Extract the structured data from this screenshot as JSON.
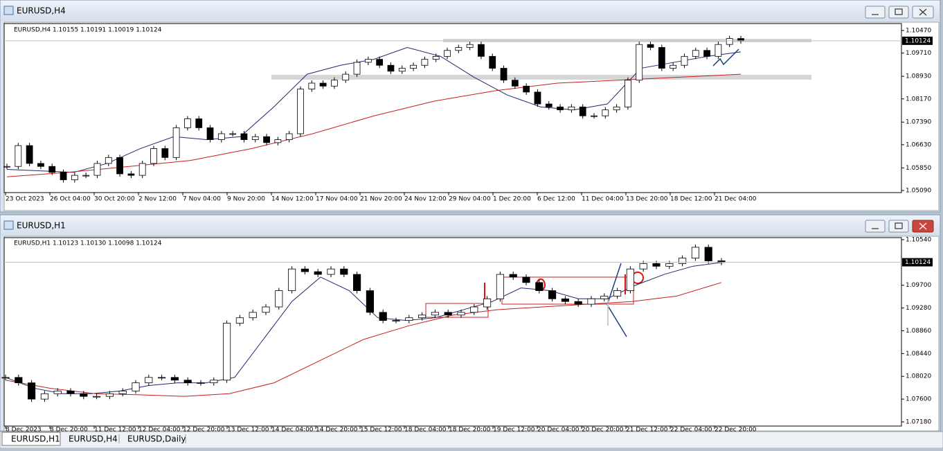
{
  "windows": [
    {
      "title": "EURUSD,H4",
      "header": "EURUSD,H4  1.10155 1.10191 1.10019 1.10124",
      "chart_data": {
        "type": "candlestick",
        "ylim": [
          1.0502,
          1.10703
        ],
        "yticks": [
          {
            "value": 1.1047,
            "label": "1.10470"
          },
          {
            "value": 1.0971,
            "label": "1.09710"
          },
          {
            "value": 1.0893,
            "label": "1.08930"
          },
          {
            "value": 1.0817,
            "label": "1.08170"
          },
          {
            "value": 1.0739,
            "label": "1.07390"
          },
          {
            "value": 1.0663,
            "label": "1.06630"
          },
          {
            "value": 1.0585,
            "label": "1.05850"
          },
          {
            "value": 1.0509,
            "label": "1.05090"
          }
        ],
        "current_price": {
          "value": 1.10124,
          "label": "1.10124"
        },
        "xticks": [
          "23 Oct 2023",
          "26 Oct 04:00",
          "30 Oct 20:00",
          "2 Nov 12:00",
          "7 Nov 04:00",
          "9 Nov 20:00",
          "14 Nov 12:00",
          "17 Nov 04:00",
          "21 Nov 20:00",
          "24 Nov 12:00",
          "29 Nov 04:00",
          "1 Dec 20:00",
          "6 Dec 12:00",
          "11 Dec 04:00",
          "13 Dec 20:00",
          "18 Dec 12:00",
          "21 Dec 04:00"
        ],
        "closes": [
          1.059,
          1.066,
          1.06,
          1.059,
          1.057,
          1.0545,
          1.056,
          1.056,
          1.06,
          1.062,
          1.0565,
          1.056,
          1.06,
          1.065,
          1.062,
          1.072,
          1.075,
          1.072,
          1.068,
          1.07,
          1.07,
          1.068,
          1.069,
          1.067,
          1.068,
          1.07,
          1.085,
          1.087,
          1.086,
          1.088,
          1.09,
          1.094,
          1.095,
          1.093,
          1.091,
          1.092,
          1.093,
          1.095,
          1.096,
          1.098,
          1.099,
          1.1,
          1.096,
          1.092,
          1.088,
          1.086,
          1.084,
          1.08,
          1.079,
          1.078,
          1.079,
          1.076,
          1.076,
          1.078,
          1.079,
          1.088,
          1.1,
          1.099,
          1.092,
          1.093,
          1.096,
          1.098,
          1.096,
          1.1,
          1.102,
          1.1012
        ],
        "series": [
          {
            "color": "#1c2a6b",
            "values": [
              1.058,
              1.0575,
              1.057,
              1.06,
              1.065,
              1.069,
              1.068,
              1.069,
              1.079,
              1.09,
              1.093,
              1.095,
              1.099,
              1.096,
              1.089,
              1.083,
              1.079,
              1.078,
              1.08,
              1.092,
              1.094,
              1.096,
              1.0975
            ]
          },
          {
            "color": "#c81e1e",
            "values": [
              1.0555,
              1.057,
              1.059,
              1.061,
              1.065,
              1.07,
              1.076,
              1.081,
              1.0845,
              1.087,
              1.088,
              1.089,
              1.09
            ]
          }
        ]
      }
    },
    {
      "title": "EURUSD,H1",
      "header": "EURUSD,H1  1.10123 1.10130 1.10098 1.10124",
      "chart_data": {
        "type": "candlestick",
        "ylim": [
          1.07103,
          1.10578
        ],
        "yticks": [
          {
            "value": 1.1054,
            "label": "1.10540"
          },
          {
            "value": 1.097,
            "label": "1.09700"
          },
          {
            "value": 1.0928,
            "label": "1.09280"
          },
          {
            "value": 1.0886,
            "label": "1.08860"
          },
          {
            "value": 1.0844,
            "label": "1.08440"
          },
          {
            "value": 1.0802,
            "label": "1.08020"
          },
          {
            "value": 1.076,
            "label": "1.07600"
          },
          {
            "value": 1.0718,
            "label": "1.07180"
          }
        ],
        "current_price": {
          "value": 1.10124,
          "label": "1.10124"
        },
        "xticks": [
          "8 Dec 2023",
          "8 Dec 20:00",
          "11 Dec 12:00",
          "12 Dec 04:00",
          "12 Dec 20:00",
          "13 Dec 12:00",
          "14 Dec 04:00",
          "14 Dec 20:00",
          "15 Dec 12:00",
          "18 Dec 04:00",
          "18 Dec 20:00",
          "19 Dec 12:00",
          "20 Dec 04:00",
          "20 Dec 20:00",
          "21 Dec 12:00",
          "22 Dec 04:00",
          "22 Dec 20:00"
        ],
        "closes": [
          1.08,
          1.079,
          1.076,
          1.077,
          1.0775,
          1.077,
          1.0765,
          1.0765,
          1.077,
          1.0775,
          1.079,
          1.08,
          1.08,
          1.0795,
          1.079,
          1.079,
          1.0795,
          1.09,
          1.091,
          1.092,
          1.093,
          1.096,
          1.1,
          1.0995,
          1.099,
          1.1,
          1.099,
          1.096,
          1.092,
          1.0905,
          1.0905,
          1.091,
          1.0915,
          1.092,
          1.0915,
          1.092,
          1.093,
          1.0945,
          1.099,
          1.0985,
          1.0975,
          1.096,
          1.0945,
          1.094,
          1.0935,
          1.0945,
          1.095,
          1.096,
          1.1,
          1.101,
          1.1005,
          1.101,
          1.102,
          1.104,
          1.1015,
          1.1012
        ],
        "series": [
          {
            "color": "#1c2a6b",
            "values": [
              1.08,
              1.078,
              1.077,
              1.077,
              1.0775,
              1.0785,
              1.079,
              1.079,
              1.08,
              1.087,
              1.094,
              1.0985,
              1.096,
              1.091,
              1.0905,
              1.091,
              1.0925,
              1.094,
              1.0965,
              1.096,
              1.0945,
              1.0945,
              1.097,
              1.099,
              1.1005,
              1.1012
            ]
          },
          {
            "color": "#c81e1e",
            "values": [
              1.0795,
              1.078,
              1.077,
              1.0768,
              1.0765,
              1.077,
              1.079,
              1.083,
              1.087,
              1.0895,
              1.0915,
              1.0925,
              1.093,
              1.0935,
              1.094,
              1.095,
              1.0975
            ]
          }
        ]
      }
    }
  ],
  "tabs": [
    "EURUSD,H1",
    "EURUSD,H4",
    "EURUSD,Daily"
  ]
}
